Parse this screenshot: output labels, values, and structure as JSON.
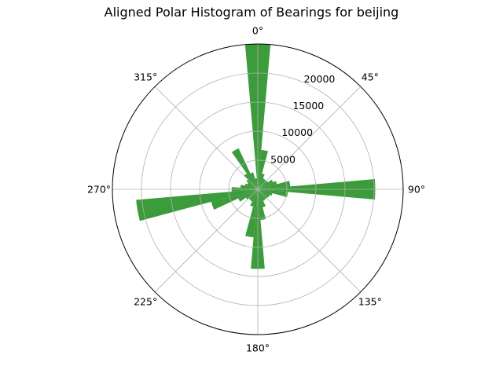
{
  "chart_data": {
    "type": "bar",
    "projection": "polar",
    "title": "Aligned Polar Histogram of Bearings for beijing",
    "theta_direction": "clockwise",
    "theta_zero_location": "top",
    "theta_ticks": [
      "0°",
      "45°",
      "90°",
      "135°",
      "180°",
      "225°",
      "270°",
      "315°"
    ],
    "theta_tick_angles": [
      0,
      45,
      90,
      135,
      180,
      225,
      270,
      315
    ],
    "r_ticks": [
      "5000",
      "10000",
      "15000",
      "20000"
    ],
    "r_tick_values": [
      5000,
      10000,
      15000,
      20000
    ],
    "r_max": 25000,
    "bin_width_deg": 10,
    "color": "#3c9c3c",
    "grid": true,
    "x": [
      0,
      10,
      20,
      30,
      40,
      50,
      60,
      70,
      80,
      90,
      100,
      110,
      120,
      130,
      140,
      150,
      160,
      170,
      180,
      190,
      200,
      210,
      220,
      230,
      240,
      250,
      260,
      270,
      280,
      290,
      300,
      310,
      320,
      330,
      340,
      350
    ],
    "values": [
      25000,
      6800,
      2800,
      2100,
      2000,
      2100,
      2900,
      3400,
      5600,
      20200,
      5200,
      2600,
      2300,
      2200,
      2100,
      2200,
      3200,
      5300,
      13700,
      8300,
      3100,
      2300,
      2200,
      2500,
      3700,
      8300,
      21000,
      4500,
      3000,
      2300,
      2000,
      2400,
      3300,
      7800,
      3000,
      1900
    ]
  }
}
